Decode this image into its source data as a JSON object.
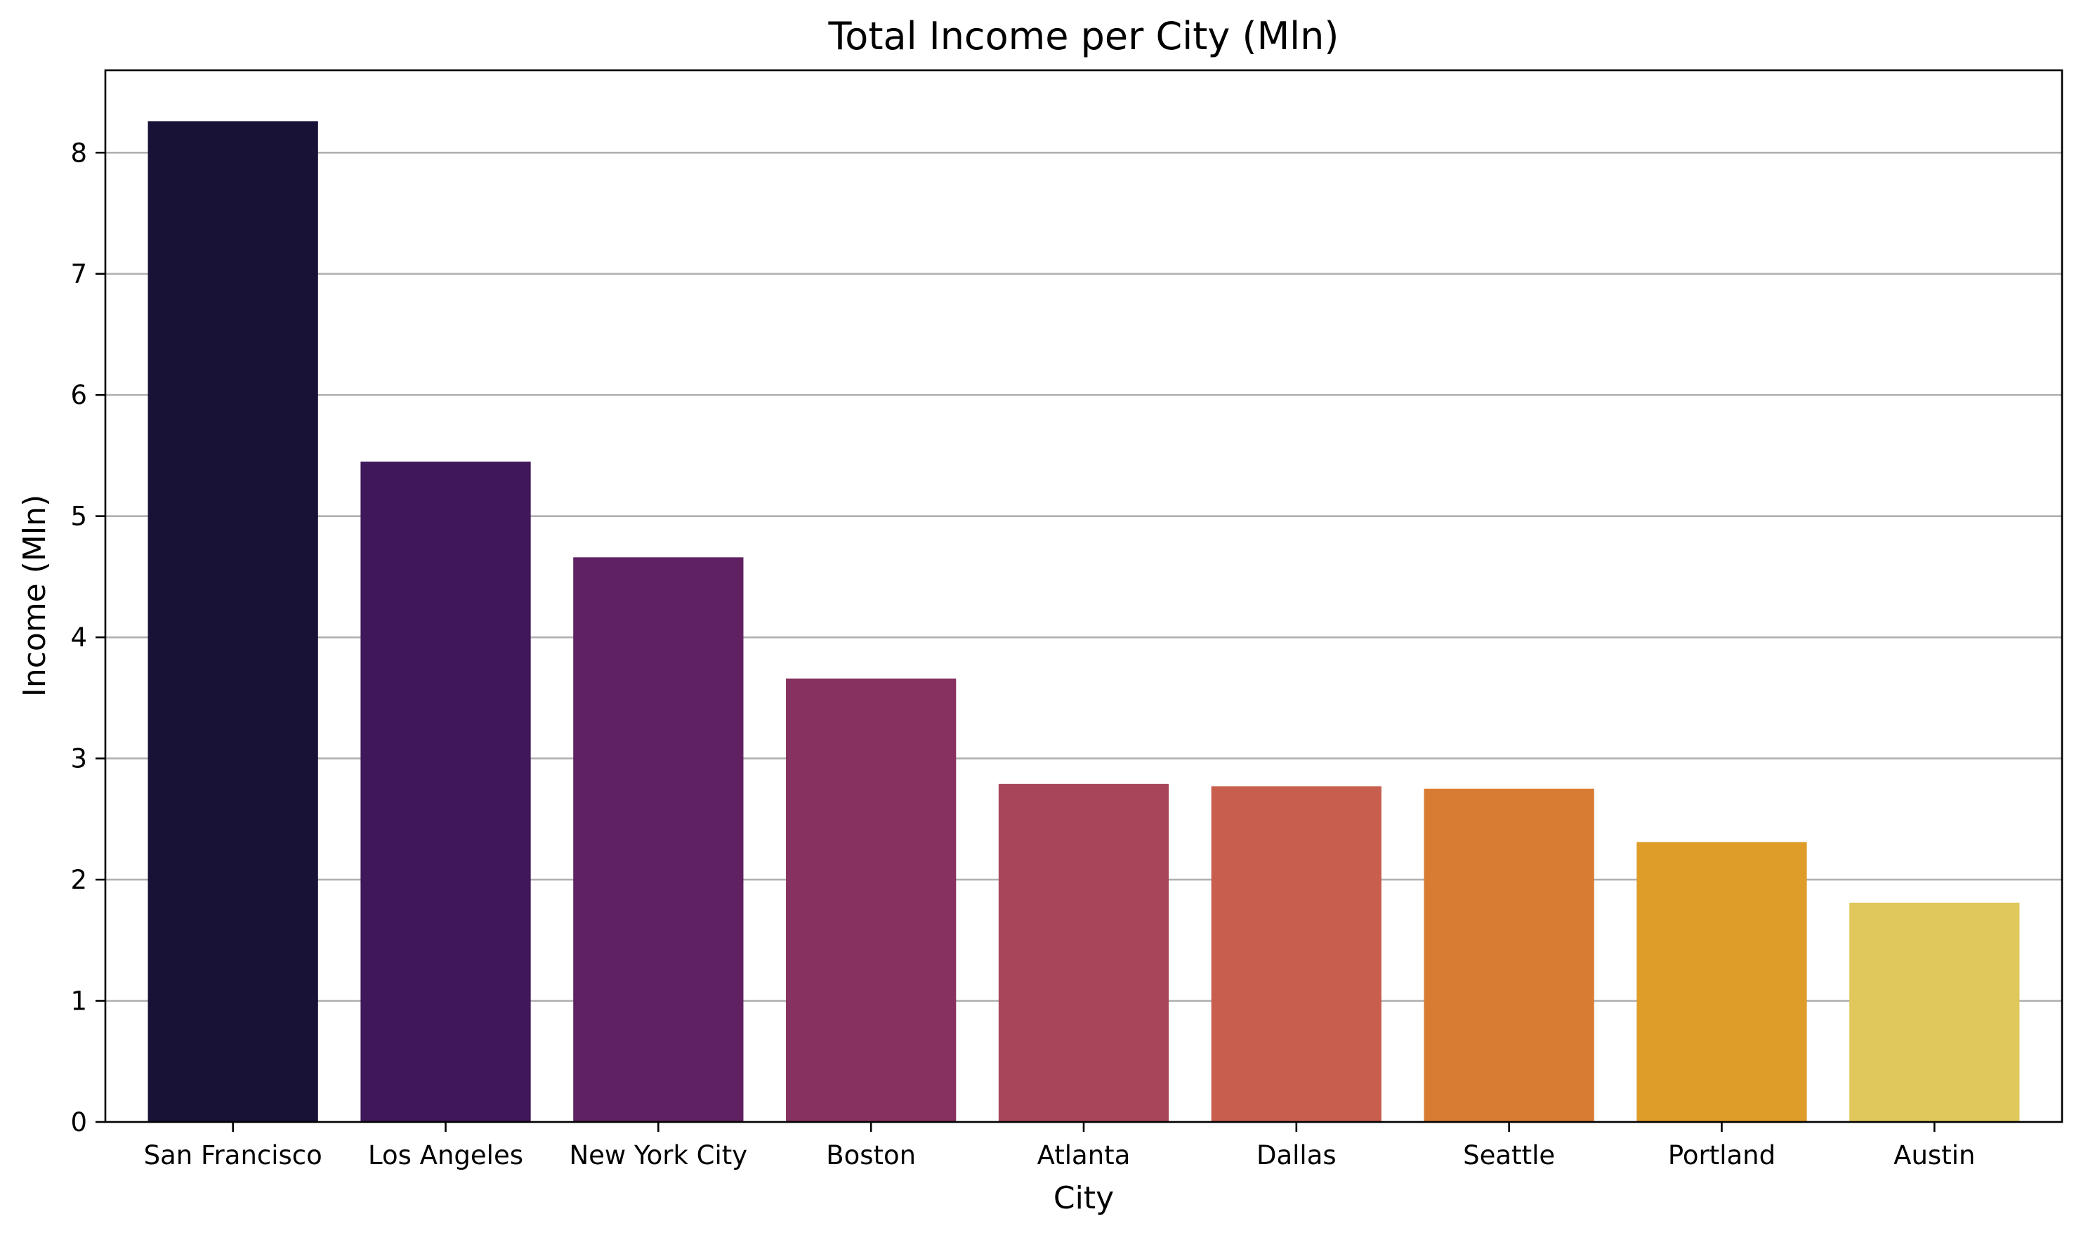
{
  "chart_data": {
    "type": "bar",
    "title": "Total Income per City (Mln)",
    "xlabel": "City",
    "ylabel": "Income (Mln)",
    "categories": [
      "San Francisco",
      "Los Angeles",
      "New York City",
      "Boston",
      "Atlanta",
      "Dallas",
      "Seattle",
      "Portland",
      "Austin"
    ],
    "values": [
      8.26,
      5.45,
      4.66,
      3.66,
      2.79,
      2.77,
      2.75,
      2.31,
      1.81
    ],
    "colors": [
      "#181237",
      "#40175a",
      "#5f2161",
      "#86315f",
      "#a9455b",
      "#c85f4e",
      "#d97c33",
      "#de9d28",
      "#e0c95a"
    ],
    "ylim": [
      0,
      8.68
    ],
    "yticks": [
      0,
      1,
      2,
      3,
      4,
      5,
      6,
      7,
      8
    ],
    "grid": "horizontal",
    "legend": "none"
  }
}
